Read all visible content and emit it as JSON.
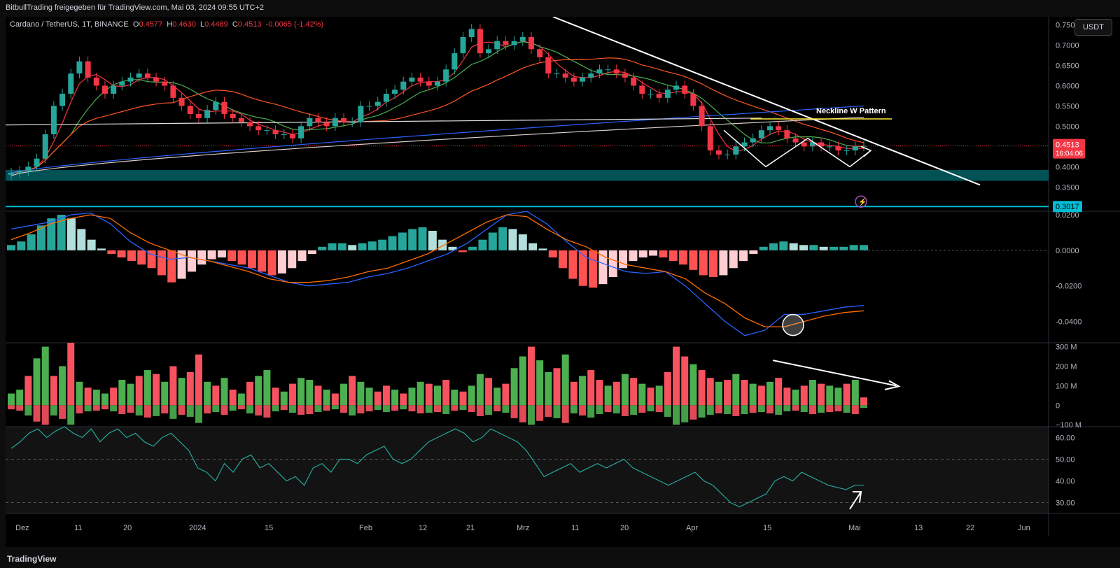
{
  "header": {
    "publisher": "BitbullTrading freigegeben für TradingView.com, Mai 03, 2024 09:55 UTC+2"
  },
  "legend": {
    "symbol": "Cardano / TetherUS, 1T, BINANCE",
    "o_label": "O",
    "o": "0.4577",
    "h_label": "H",
    "h": "0.4630",
    "l_label": "L",
    "l": "0.4489",
    "c_label": "C",
    "c": "0.4513",
    "change": "-0.0065 (-1.42%)"
  },
  "currency_button": "USDT",
  "footer": {
    "logo": "TradingView"
  },
  "colors": {
    "up": "#26a69a",
    "down": "#f23645",
    "volume_up": "#4caf50",
    "volume_down": "#f7525f",
    "macd_line": "#2962ff",
    "signal_line": "#ff6d00",
    "rsi_line": "#26a69a",
    "zone": "#006064",
    "support_line": "#00bcd4",
    "neckline": "#ffeb3b",
    "annotation": "#ffffff"
  },
  "chart_data": [
    {
      "type": "candlestick",
      "pane": "price",
      "y_ticks": [
        "0.7500",
        "0.7000",
        "0.6500",
        "0.6000",
        "0.5500",
        "0.5000",
        "0.4500",
        "0.4000",
        "0.3500"
      ],
      "ylim": [
        0.29,
        0.77
      ],
      "last_price": "0.4513",
      "countdown": "16:04:06",
      "support_price": "0.3017",
      "support_zone": [
        0.365,
        0.392
      ],
      "annotation_label": "Neckline W Pattern",
      "neckline_price": 0.518,
      "x_ticks": [
        "Dez",
        "11",
        "20",
        "2024",
        "15",
        "Feb",
        "12",
        "21",
        "Mrz",
        "11",
        "20",
        "Apr",
        "15",
        "Mai",
        "13",
        "22",
        "Jun"
      ],
      "close_path": [
        0.385,
        0.39,
        0.4,
        0.42,
        0.48,
        0.55,
        0.58,
        0.63,
        0.66,
        0.62,
        0.6,
        0.58,
        0.6,
        0.61,
        0.62,
        0.63,
        0.62,
        0.61,
        0.6,
        0.57,
        0.55,
        0.53,
        0.52,
        0.54,
        0.56,
        0.53,
        0.52,
        0.51,
        0.5,
        0.49,
        0.49,
        0.48,
        0.48,
        0.47,
        0.5,
        0.52,
        0.51,
        0.5,
        0.52,
        0.51,
        0.51,
        0.55,
        0.55,
        0.56,
        0.58,
        0.59,
        0.61,
        0.62,
        0.61,
        0.6,
        0.61,
        0.64,
        0.68,
        0.72,
        0.74,
        0.68,
        0.69,
        0.71,
        0.7,
        0.71,
        0.72,
        0.69,
        0.67,
        0.63,
        0.63,
        0.62,
        0.61,
        0.62,
        0.63,
        0.64,
        0.64,
        0.63,
        0.62,
        0.6,
        0.58,
        0.58,
        0.57,
        0.59,
        0.6,
        0.58,
        0.55,
        0.5,
        0.44,
        0.43,
        0.43,
        0.45,
        0.46,
        0.47,
        0.49,
        0.5,
        0.49,
        0.47,
        0.46,
        0.45,
        0.46,
        0.45,
        0.45,
        0.44,
        0.44,
        0.45,
        0.4513
      ]
    },
    {
      "type": "macd",
      "pane": "macd",
      "y_ticks": [
        "0.0200",
        "0.0000",
        "-0.0200",
        "-0.0400"
      ],
      "ylim": [
        -0.052,
        0.022
      ],
      "histogram": [
        0.003,
        0.005,
        0.009,
        0.014,
        0.018,
        0.02,
        0.018,
        0.012,
        0.006,
        0.001,
        -0.002,
        -0.004,
        -0.006,
        -0.008,
        -0.01,
        -0.014,
        -0.018,
        -0.016,
        -0.012,
        -0.008,
        -0.005,
        -0.004,
        -0.006,
        -0.008,
        -0.01,
        -0.012,
        -0.014,
        -0.013,
        -0.01,
        -0.006,
        -0.002,
        0.002,
        0.004,
        0.004,
        0.003,
        0.004,
        0.005,
        0.006,
        0.008,
        0.01,
        0.012,
        0.013,
        0.011,
        0.006,
        0.002,
        -0.001,
        0.002,
        0.006,
        0.01,
        0.013,
        0.012,
        0.009,
        0.004,
        0.001,
        -0.004,
        -0.01,
        -0.016,
        -0.02,
        -0.021,
        -0.019,
        -0.015,
        -0.01,
        -0.006,
        -0.004,
        -0.003,
        -0.004,
        -0.006,
        -0.008,
        -0.011,
        -0.014,
        -0.015,
        -0.014,
        -0.01,
        -0.006,
        -0.002,
        0.002,
        0.004,
        0.005,
        0.004,
        0.003,
        0.003,
        0.002,
        0.002,
        0.002,
        0.003,
        0.003
      ],
      "macd_line": [
        0.012,
        0.014,
        0.016,
        0.02,
        0.021,
        0.015,
        0.005,
        -0.002,
        -0.005,
        -0.004,
        -0.006,
        -0.008,
        -0.01,
        -0.014,
        -0.018,
        -0.02,
        -0.019,
        -0.018,
        -0.015,
        -0.013,
        -0.01,
        -0.006,
        -0.002,
        0.004,
        0.012,
        0.02,
        0.022,
        0.015,
        0.005,
        -0.004,
        -0.008,
        -0.012,
        -0.013,
        -0.012,
        -0.02,
        -0.03,
        -0.04,
        -0.048,
        -0.045,
        -0.036,
        -0.036,
        -0.034,
        -0.032,
        -0.031
      ],
      "signal_line": [
        0.006,
        0.01,
        0.015,
        0.018,
        0.02,
        0.018,
        0.01,
        0.004,
        0.0,
        -0.004,
        -0.006,
        -0.009,
        -0.012,
        -0.016,
        -0.018,
        -0.018,
        -0.017,
        -0.015,
        -0.012,
        -0.01,
        -0.006,
        -0.002,
        0.004,
        0.01,
        0.016,
        0.02,
        0.019,
        0.012,
        0.006,
        0.002,
        -0.004,
        -0.008,
        -0.01,
        -0.012,
        -0.016,
        -0.024,
        -0.03,
        -0.038,
        -0.043,
        -0.043,
        -0.04,
        -0.037,
        -0.035,
        -0.034
      ]
    },
    {
      "type": "bar",
      "pane": "volume",
      "y_ticks": [
        "300 M",
        "200 M",
        "100 M",
        "0",
        "−100 M"
      ],
      "ylim": [
        -110,
        320
      ],
      "values": [
        60,
        80,
        150,
        240,
        300,
        150,
        200,
        320,
        120,
        90,
        80,
        60,
        90,
        130,
        110,
        150,
        180,
        160,
        120,
        200,
        140,
        170,
        260,
        120,
        100,
        140,
        80,
        60,
        120,
        150,
        180,
        90,
        70,
        110,
        140,
        130,
        100,
        80,
        60,
        110,
        150,
        120,
        90,
        70,
        100,
        80,
        60,
        90,
        120,
        110,
        100,
        130,
        80,
        70,
        100,
        160,
        140,
        90,
        110,
        190,
        250,
        300,
        230,
        170,
        190,
        260,
        120,
        150,
        180,
        130,
        100,
        120,
        160,
        140,
        110,
        90,
        100,
        170,
        300,
        250,
        210,
        180,
        140,
        120,
        130,
        160,
        130,
        110,
        100,
        120,
        140,
        90,
        80,
        100,
        130,
        110,
        100,
        90,
        110,
        130,
        40
      ],
      "directions": [
        1,
        1,
        -1,
        1,
        1,
        -1,
        1,
        -1,
        1,
        -1,
        1,
        1,
        -1,
        1,
        1,
        -1,
        1,
        -1,
        1,
        -1,
        1,
        -1,
        -1,
        1,
        -1,
        1,
        -1,
        1,
        -1,
        1,
        1,
        -1,
        1,
        -1,
        1,
        1,
        -1,
        1,
        -1,
        1,
        -1,
        1,
        1,
        -1,
        -1,
        1,
        -1,
        1,
        1,
        -1,
        1,
        -1,
        1,
        -1,
        1,
        1,
        -1,
        1,
        -1,
        1,
        1,
        -1,
        1,
        1,
        -1,
        1,
        -1,
        1,
        -1,
        -1,
        1,
        -1,
        1,
        -1,
        1,
        -1,
        1,
        -1,
        -1,
        -1,
        1,
        -1,
        -1,
        1,
        -1,
        1,
        -1,
        1,
        -1,
        1,
        -1,
        -1,
        1,
        -1,
        1,
        -1,
        1,
        1,
        -1,
        1,
        -1
      ]
    },
    {
      "type": "line",
      "pane": "rsi",
      "y_ticks": [
        "60.00",
        "50.00",
        "40.00",
        "30.00"
      ],
      "ylim": [
        25,
        65
      ],
      "values": [
        55,
        58,
        62,
        64,
        60,
        63,
        65,
        62,
        60,
        64,
        58,
        62,
        64,
        60,
        62,
        58,
        56,
        60,
        62,
        58,
        54,
        46,
        44,
        40,
        48,
        44,
        50,
        52,
        46,
        48,
        44,
        40,
        42,
        38,
        46,
        48,
        44,
        50,
        50,
        48,
        52,
        54,
        56,
        50,
        48,
        50,
        54,
        58,
        60,
        62,
        64,
        62,
        58,
        60,
        64,
        62,
        60,
        58,
        54,
        48,
        42,
        44,
        46,
        48,
        44,
        46,
        48,
        46,
        48,
        50,
        46,
        44,
        42,
        40,
        38,
        40,
        42,
        44,
        40,
        38,
        34,
        30,
        28,
        30,
        32,
        34,
        40,
        42,
        40,
        44,
        42,
        40,
        38,
        37,
        36,
        38,
        38
      ]
    }
  ]
}
